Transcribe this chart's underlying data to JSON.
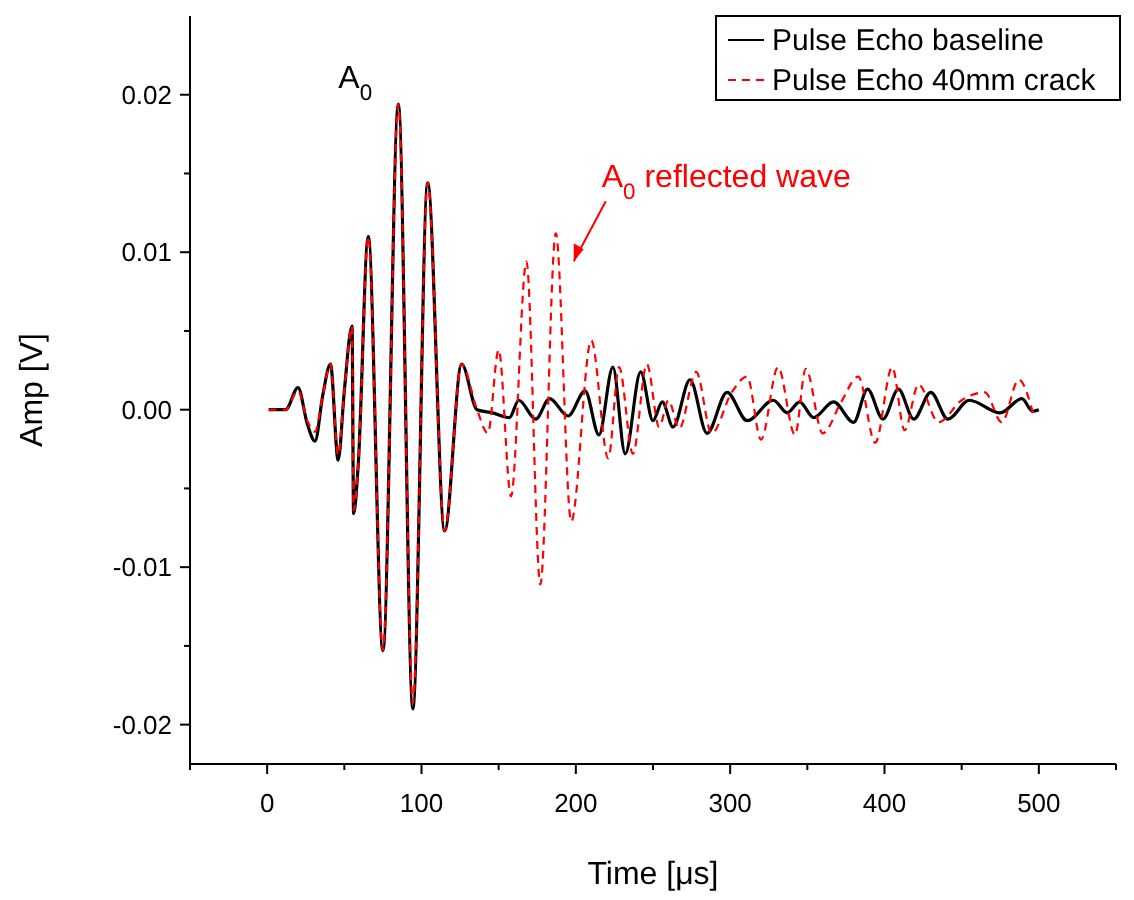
{
  "chart_data": {
    "type": "line",
    "xlabel": "Time [μs]",
    "ylabel": "Amp [V]",
    "legend": "top right",
    "xlim": [
      -50,
      550
    ],
    "xticks": [
      {
        "value": -50,
        "label": null
      },
      0,
      {
        "value": 50,
        "label": null
      },
      100,
      {
        "value": 150,
        "label": null
      },
      200,
      {
        "value": 250,
        "label": null
      },
      300,
      {
        "value": 350,
        "label": null
      },
      400,
      {
        "value": 450,
        "label": null
      },
      500,
      {
        "value": 550,
        "label": null
      }
    ],
    "ylim": [
      -0.0225,
      0.025
    ],
    "yticks": [
      {
        "value": -0.02,
        "label": "-0.02"
      },
      {
        "value": -0.015,
        "label": null
      },
      {
        "value": -0.01,
        "label": "-0.01"
      },
      {
        "value": -0.005,
        "label": null
      },
      {
        "value": 0,
        "label": "0.00"
      },
      {
        "value": 0.005,
        "label": null
      },
      {
        "value": 0.01,
        "label": "0.01"
      },
      {
        "value": 0.015,
        "label": null
      },
      {
        "value": 0.02,
        "label": "0.02"
      }
    ],
    "annotations": [
      {
        "text": "A$_{0}$",
        "x": 85,
        "y": 0.0194
      },
      {
        "text": "A$_{0}$ reflected wave",
        "x": 187,
        "y": 0.0112
      }
    ],
    "series": [
      {
        "name": "Pulse Echo baseline",
        "color": "#000000",
        "line_style": "solid",
        "x": [
          1,
          12,
          20,
          26,
          31,
          36,
          41,
          46,
          50,
          55,
          56,
          59,
          65.5,
          75,
          85,
          94.4,
          104,
          115,
          126,
          136,
          146,
          157,
          163,
          174,
          183,
          195,
          206,
          215,
          224,
          232,
          242,
          250,
          256,
          263,
          274,
          285,
          298,
          311,
          328,
          337,
          345,
          354,
          367,
          380,
          389,
          399,
          409,
          419,
          430,
          441,
          455,
          475,
          489,
          496,
          500
        ],
        "values": [
          0,
          0,
          0.0014,
          -0.0009,
          -0.002,
          0.0009,
          0.0029,
          -0.0032,
          0.0012,
          0.0053,
          -0.0066,
          -0.0035,
          0.011,
          -0.0153,
          0.0194,
          -0.019,
          0.0144,
          -0.0077,
          0.0029,
          0,
          -0.0002,
          -0.0005,
          0.0006,
          -0.0006,
          0.0007,
          -0.0004,
          0.0012,
          -0.0016,
          0.0027,
          -0.0028,
          0.0024,
          -0.0007,
          0.0005,
          -0.0011,
          0.0019,
          -0.0015,
          0.0011,
          -0.0007,
          0.0006,
          -0.0002,
          0.0005,
          -0.0005,
          0.0005,
          -0.0008,
          0.0013,
          -0.0006,
          0.0013,
          -0.0006,
          0.0011,
          -0.0006,
          0.0006,
          -0.0002,
          0.0007,
          -0.0001,
          0
        ]
      },
      {
        "name": "Pulse Echo 40mm crack",
        "color": "#ff0000",
        "line_style": "dashed",
        "x": [
          1,
          12,
          20,
          26,
          31,
          36,
          41,
          46,
          50,
          55,
          56,
          59,
          65.5,
          75,
          85,
          94.4,
          104,
          115,
          126,
          136,
          143,
          150,
          158,
          168,
          177,
          187,
          197,
          210,
          221,
          228,
          237,
          246,
          254,
          260,
          267,
          278,
          288,
          301,
          311,
          320,
          331,
          342,
          349,
          360,
          372,
          383,
          394,
          405,
          413,
          422,
          435,
          450,
          465,
          476,
          487,
          497
        ],
        "values": [
          0,
          0,
          0.0012,
          -0.0007,
          -0.0014,
          0.0009,
          0.0029,
          -0.0029,
          0.0012,
          0.0053,
          -0.0064,
          -0.0035,
          0.011,
          -0.0153,
          0.0194,
          -0.0186,
          0.0144,
          -0.0077,
          0.0029,
          0,
          -0.0015,
          0.0038,
          -0.0055,
          0.0094,
          -0.0111,
          0.0112,
          -0.0071,
          0.0044,
          -0.0031,
          0.0027,
          -0.0028,
          0.0029,
          -0.0011,
          0.0006,
          -0.0012,
          0.0024,
          -0.0015,
          0.0011,
          0.0021,
          -0.0019,
          0.0027,
          -0.0016,
          0.0026,
          -0.0015,
          0.0005,
          0.0021,
          -0.0021,
          0.0027,
          -0.0013,
          0.0016,
          -0.0008,
          0.0006,
          0.0011,
          -0.0008,
          0.0019,
          -0.0005
        ]
      }
    ]
  }
}
